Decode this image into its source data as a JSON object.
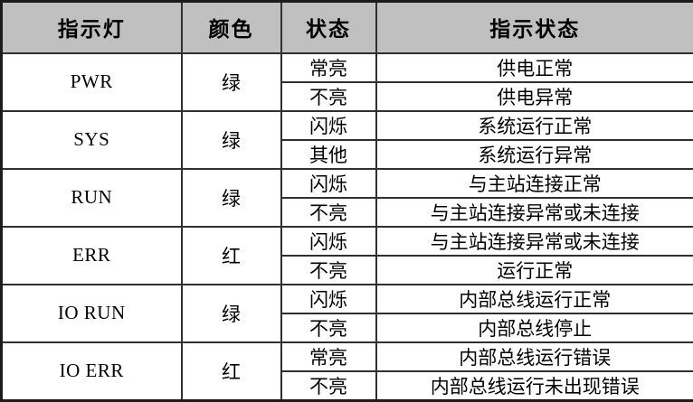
{
  "table": {
    "headers": [
      "指示灯",
      "颜色",
      "状态",
      "指示状态"
    ],
    "groups": [
      {
        "indicator": "PWR",
        "color": "绿",
        "rows": [
          [
            "常亮",
            "供电正常"
          ],
          [
            "不亮",
            "供电异常"
          ]
        ]
      },
      {
        "indicator": "SYS",
        "color": "绿",
        "rows": [
          [
            "闪烁",
            "系统运行正常"
          ],
          [
            "其他",
            "系统运行异常"
          ]
        ]
      },
      {
        "indicator": "RUN",
        "color": "绿",
        "rows": [
          [
            "闪烁",
            "与主站连接正常"
          ],
          [
            "不亮",
            "与主站连接异常或未连接"
          ]
        ]
      },
      {
        "indicator": "ERR",
        "color": "红",
        "rows": [
          [
            "闪烁",
            "与主站连接异常或未连接"
          ],
          [
            "不亮",
            "运行正常"
          ]
        ]
      },
      {
        "indicator": "IO RUN",
        "color": "绿",
        "rows": [
          [
            "闪烁",
            "内部总线运行正常"
          ],
          [
            "不亮",
            "内部总线停止"
          ]
        ]
      },
      {
        "indicator": "IO ERR",
        "color": "红",
        "rows": [
          [
            "常亮",
            "内部总线运行错误"
          ],
          [
            "不亮",
            "内部总线运行未出现错误"
          ]
        ]
      }
    ],
    "style": {
      "header_bg": "#c0c0c0",
      "border_color": "#303030",
      "outer_border_color": "#1c1c1c",
      "text_color": "#000000"
    }
  }
}
